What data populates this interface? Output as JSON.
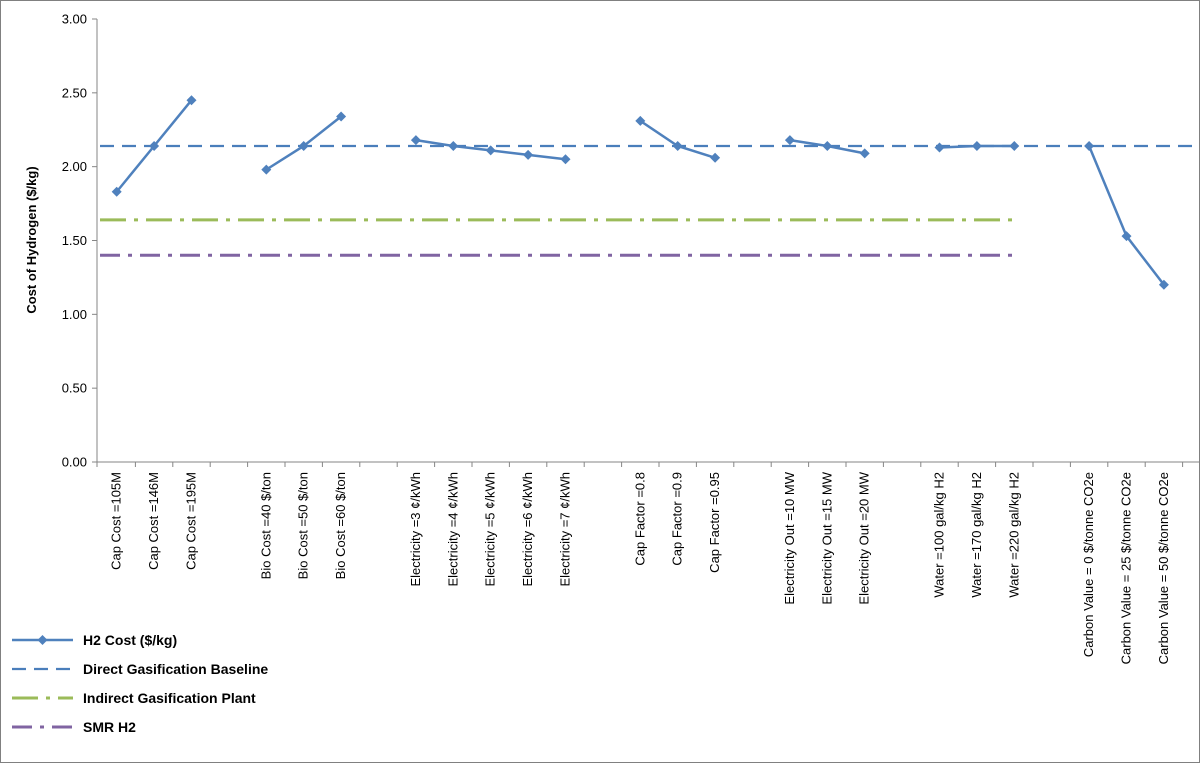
{
  "chart_data": {
    "type": "line",
    "ylabel": "Cost of Hydrogen  ($/kg)",
    "xlabel": "",
    "ylim": [
      0,
      3
    ],
    "y_ticks": [
      "0.00",
      "0.50",
      "1.00",
      "1.50",
      "2.00",
      "2.50",
      "3.00"
    ],
    "grid": false,
    "legend_position": "bottom-left",
    "groups": [
      {
        "categories": [
          "Cap Cost =105M",
          "Cap Cost =146M",
          "Cap Cost =195M"
        ],
        "values": [
          1.83,
          2.14,
          2.45
        ]
      },
      {
        "categories": [
          "Bio Cost =40 $/ton",
          "Bio Cost =50 $/ton",
          "Bio Cost =60 $/ton"
        ],
        "values": [
          1.98,
          2.14,
          2.34
        ]
      },
      {
        "categories": [
          "Electricity =3 ¢/kWh",
          "Electricity =4 ¢/kWh",
          "Electricity =5 ¢/kWh",
          "Electricity =6 ¢/kWh",
          "Electricity =7 ¢/kWh"
        ],
        "values": [
          2.18,
          2.14,
          2.11,
          2.08,
          2.05
        ]
      },
      {
        "categories": [
          "Cap Factor =0.8",
          "Cap Factor =0.9",
          "Cap Factor =0.95"
        ],
        "values": [
          2.31,
          2.14,
          2.06
        ]
      },
      {
        "categories": [
          "Electricity Out =10 MW",
          "Electricity Out =15 MW",
          "Electricity Out =20 MW"
        ],
        "values": [
          2.18,
          2.14,
          2.09
        ]
      },
      {
        "categories": [
          "Water =100 gal/kg H2",
          "Water =170 gal/kg H2",
          "Water =220 gal/kg H2"
        ],
        "values": [
          2.13,
          2.14,
          2.14
        ]
      },
      {
        "categories": [
          "Carbon Value = 0 $/tonne CO2e",
          "Carbon Value = 25 $/tonne CO2e",
          "Carbon Value = 50 $/tonne CO2e"
        ],
        "values": [
          2.14,
          1.53,
          1.2
        ]
      }
    ],
    "reference_lines": [
      {
        "name": "Direct Gasification Baseline",
        "value": 2.14,
        "color": "#4A7EBB",
        "style": "dashed",
        "span": "full"
      },
      {
        "name": "Indirect Gasification Plant",
        "value": 1.64,
        "color": "#9BBB59",
        "style": "dash-dot",
        "span": "through Water =220 gal/kg H2"
      },
      {
        "name": "SMR H2",
        "value": 1.4,
        "color": "#8064A2",
        "style": "dash-dot",
        "span": "through Water =220 gal/kg H2"
      }
    ],
    "series": [
      {
        "name": "H2 Cost ($/kg)",
        "color": "#4F81BD",
        "marker": "diamond"
      }
    ],
    "legend": [
      {
        "label": "H2 Cost ($/kg)",
        "color": "#4F81BD",
        "style": "line-diamond"
      },
      {
        "label": "Direct Gasification Baseline",
        "color": "#4A7EBB",
        "style": "dashed"
      },
      {
        "label": "Indirect Gasification Plant",
        "color": "#9BBB59",
        "style": "dash-dot"
      },
      {
        "label": "SMR H2",
        "color": "#8064A2",
        "style": "dash-dot"
      }
    ]
  }
}
